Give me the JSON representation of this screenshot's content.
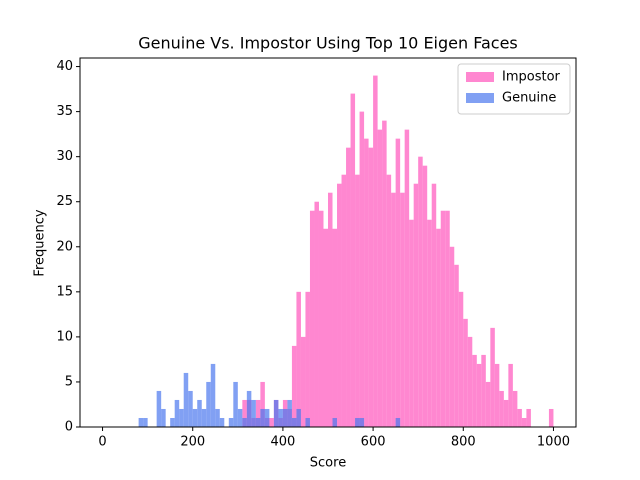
{
  "chart_data": {
    "type": "histogram",
    "title": "Genuine Vs. Impostor Using Top 10 Eigen Faces",
    "x_label": "Score",
    "y_label": "Frequency",
    "xlim": [
      -50,
      1050
    ],
    "ylim": [
      0,
      40.95
    ],
    "xticks": [
      0,
      200,
      400,
      600,
      800,
      1000
    ],
    "yticks": [
      0,
      5,
      10,
      15,
      20,
      25,
      30,
      35,
      40
    ],
    "legend": "upper right",
    "series": [
      {
        "name": "Impostor",
        "color": "#ff69c4",
        "bins": [
          300,
          310,
          320,
          330,
          340,
          350,
          360,
          370,
          380,
          390,
          400,
          410,
          420,
          430,
          440,
          450,
          460,
          470,
          480,
          490,
          500,
          510,
          520,
          530,
          540,
          550,
          560,
          570,
          580,
          590,
          600,
          610,
          620,
          630,
          640,
          650,
          660,
          670,
          680,
          690,
          700,
          710,
          720,
          730,
          740,
          750,
          760,
          770,
          780,
          790,
          800,
          810,
          820,
          830,
          840,
          850,
          860,
          870,
          880,
          890,
          900,
          910,
          920,
          930,
          940,
          950,
          960,
          970,
          980,
          990,
          1000
        ],
        "values": [
          0,
          3,
          3,
          1,
          3,
          5,
          1,
          1,
          3,
          1,
          3,
          2,
          9,
          15,
          10,
          15,
          24,
          25,
          24,
          22,
          26,
          22,
          27,
          28,
          31,
          37,
          28,
          35,
          32,
          31,
          39,
          33,
          34,
          28,
          26,
          32,
          26,
          33,
          23,
          27,
          30,
          29,
          23,
          27,
          22,
          24,
          24,
          20,
          18,
          15,
          12,
          10,
          8,
          7,
          8,
          5,
          11,
          7,
          4,
          3,
          7,
          4,
          2,
          1,
          2,
          0,
          0,
          0,
          0,
          2
        ]
      },
      {
        "name": "Genuine",
        "color": "#4c78ee",
        "bins": [
          80,
          90,
          100,
          110,
          120,
          130,
          140,
          150,
          160,
          170,
          180,
          190,
          200,
          210,
          220,
          230,
          240,
          250,
          260,
          270,
          280,
          290,
          300,
          310,
          320,
          330,
          340,
          350,
          360,
          370,
          380,
          390,
          400,
          410,
          420,
          430,
          440,
          450,
          460,
          470,
          480,
          490,
          500,
          510,
          520,
          530,
          540,
          550,
          560,
          570,
          580,
          590,
          600,
          610,
          620,
          630,
          640,
          650,
          660
        ],
        "values": [
          1,
          1,
          0,
          0,
          4,
          2,
          0,
          1,
          3,
          2,
          6,
          4,
          2,
          3,
          2,
          5,
          7,
          2,
          1,
          0,
          1,
          5,
          2,
          1,
          4,
          3,
          1,
          2,
          2,
          0,
          3,
          2,
          2,
          3,
          1,
          2,
          0,
          1,
          0,
          0,
          0,
          0,
          0,
          1,
          0,
          0,
          0,
          0,
          1,
          1,
          0,
          0,
          0,
          0,
          0,
          0,
          0,
          1
        ]
      }
    ]
  }
}
